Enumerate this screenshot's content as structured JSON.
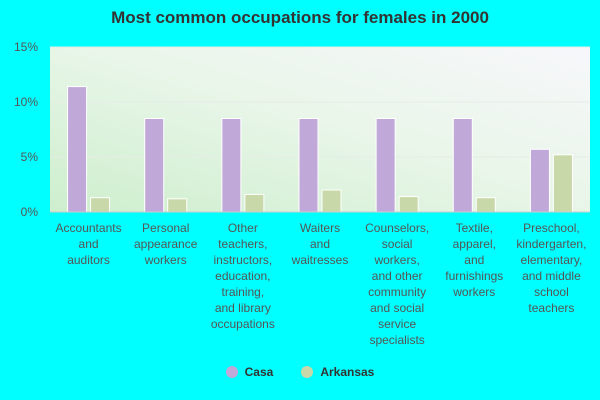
{
  "chart_data": {
    "type": "bar",
    "title": "Most common occupations for females in 2000",
    "xlabel": "",
    "ylabel": "",
    "ylim": [
      0,
      15
    ],
    "yticks": [
      0,
      5,
      10,
      15
    ],
    "ytick_labels": [
      "0%",
      "5%",
      "10%",
      "15%"
    ],
    "categories": [
      [
        "Accountants",
        "and",
        "auditors"
      ],
      [
        "Personal",
        "appearance",
        "workers"
      ],
      [
        "Other",
        "teachers,",
        "instructors,",
        "education,",
        "training,",
        "and library",
        "occupations"
      ],
      [
        "Waiters",
        "and",
        "waitresses"
      ],
      [
        "Counselors,",
        "social",
        "workers,",
        "and other",
        "community",
        "and social",
        "service",
        "specialists"
      ],
      [
        "Textile,",
        "apparel,",
        "and",
        "furnishings",
        "workers"
      ],
      [
        "Preschool,",
        "kindergarten,",
        "elementary,",
        "and middle",
        "school",
        "teachers"
      ]
    ],
    "series": [
      {
        "name": "Casa",
        "color": "#c0a8d8",
        "values": [
          11.4,
          8.5,
          8.5,
          8.5,
          8.5,
          8.5,
          5.7
        ]
      },
      {
        "name": "Arkansas",
        "color": "#c8d8a8",
        "values": [
          1.3,
          1.2,
          1.6,
          2.0,
          1.4,
          1.3,
          5.2
        ]
      }
    ],
    "legend_position": "bottom-center",
    "grid": true
  }
}
